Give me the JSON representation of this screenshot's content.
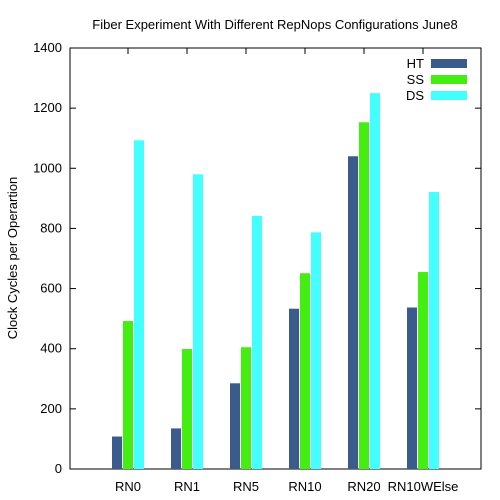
{
  "chart_data": {
    "type": "bar",
    "title": "Fiber Experiment With Different RepNops Configurations June8",
    "xlabel": "",
    "ylabel": "Clock Cycles per Operartion",
    "ylim": [
      0,
      1400
    ],
    "yticks": [
      0,
      200,
      400,
      600,
      800,
      1000,
      1200,
      1400
    ],
    "grid": false,
    "legend_position": "top-right",
    "categories": [
      "RN0",
      "RN1",
      "RN5",
      "RN10",
      "RN20",
      "RN10WElse"
    ],
    "series": [
      {
        "name": "HT",
        "color": "#3b5b8c",
        "values": [
          108,
          135,
          285,
          533,
          1040,
          537
        ]
      },
      {
        "name": "SS",
        "color": "#44ee11",
        "values": [
          492,
          399,
          405,
          651,
          1153,
          655
        ]
      },
      {
        "name": "DS",
        "color": "#44ffff",
        "values": [
          1093,
          980,
          842,
          787,
          1250,
          921
        ]
      }
    ]
  }
}
